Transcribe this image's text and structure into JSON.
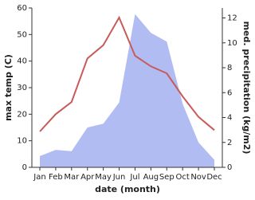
{
  "chart_data": {
    "type": "line",
    "xlabel": "date (month)",
    "ylabel": "max temp (C)",
    "y2label": "med. precipitation (kg/m2)",
    "categories": [
      "Jan",
      "Feb",
      "Mar",
      "Apr",
      "May",
      "Jun",
      "Jul",
      "Aug",
      "Sep",
      "Oct",
      "Nov",
      "Dec"
    ],
    "series": [
      {
        "color": "#c85a5a",
        "values": [
          13.5,
          20,
          24.6,
          41,
          46,
          56.4,
          42,
          38,
          35.4,
          26.7,
          19,
          14
        ]
      },
      {
        "color": "#b0bcf2",
        "axis": "y2",
        "fill": true,
        "values": [
          0.9,
          1.4,
          1.3,
          3.2,
          3.5,
          5.2,
          12.3,
          10.8,
          10.1,
          5.1,
          2.0,
          0.6
        ]
      }
    ],
    "ylim": [
      0,
      60
    ],
    "yticks": [
      0,
      10,
      20,
      30,
      40,
      50,
      60
    ],
    "y2lim": [
      0,
      12.8
    ],
    "y2ticks": [
      0,
      2,
      4,
      6,
      8,
      10,
      12
    ]
  }
}
